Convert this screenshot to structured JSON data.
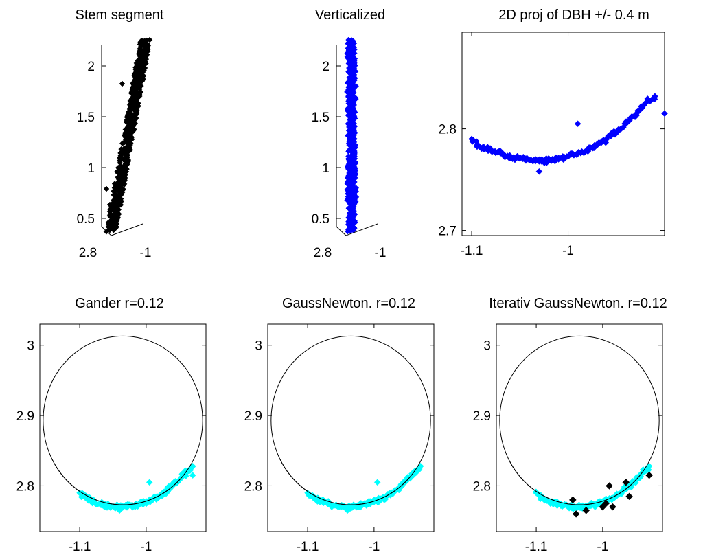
{
  "chart_data": [
    {
      "type": "scatter",
      "title": "Stem segment",
      "projection": "3d",
      "color": "#000000",
      "x_ticks": [
        "2.8",
        "-1"
      ],
      "y_ticks": [
        "2",
        "1.5",
        "1",
        "0.5"
      ],
      "zlim": [
        0.35,
        2.25
      ],
      "description_points": [
        {
          "x": -1.02,
          "y": 2.78,
          "z": 0.4
        },
        {
          "x": -1.0,
          "y": 2.79,
          "z": 1.0
        },
        {
          "x": -0.98,
          "y": 2.8,
          "z": 1.6
        },
        {
          "x": -0.96,
          "y": 2.81,
          "z": 2.2
        }
      ]
    },
    {
      "type": "scatter",
      "title": "Verticalized",
      "projection": "3d",
      "color": "#0000ff",
      "x_ticks": [
        "2.8",
        "-1"
      ],
      "y_ticks": [
        "2",
        "1.5",
        "1",
        "0.5"
      ],
      "zlim": [
        0.35,
        2.25
      ]
    },
    {
      "type": "scatter",
      "title": "2D proj of DBH +/- 0.4 m",
      "color": "#0000ff",
      "xlim": [
        -1.11,
        -0.9
      ],
      "ylim": [
        2.695,
        2.895
      ],
      "x_ticks": [
        "-1.1",
        "-1"
      ],
      "y_ticks": [
        "2.8",
        "2.7"
      ],
      "points": [
        [
          -1.1,
          2.79
        ],
        [
          -1.09,
          2.781
        ],
        [
          -1.08,
          2.779
        ],
        [
          -1.07,
          2.776
        ],
        [
          -1.06,
          2.772
        ],
        [
          -1.05,
          2.771
        ],
        [
          -1.04,
          2.769
        ],
        [
          -1.03,
          2.768
        ],
        [
          -1.02,
          2.769
        ],
        [
          -1.01,
          2.77
        ],
        [
          -1.0,
          2.773
        ],
        [
          -0.99,
          2.776
        ],
        [
          -0.98,
          2.779
        ],
        [
          -0.97,
          2.784
        ],
        [
          -0.96,
          2.79
        ],
        [
          -0.95,
          2.797
        ],
        [
          -0.94,
          2.805
        ],
        [
          -0.93,
          2.814
        ],
        [
          -0.92,
          2.825
        ],
        [
          -0.91,
          2.832
        ],
        [
          -0.99,
          2.805
        ],
        [
          -0.9,
          2.815
        ],
        [
          -1.03,
          2.758
        ]
      ]
    },
    {
      "type": "scatter",
      "title": "Gander r=0.12",
      "color": "#00ffff",
      "xlim": [
        -1.16,
        -0.91
      ],
      "ylim": [
        2.735,
        3.03
      ],
      "x_ticks": [
        "-1.1",
        "-1"
      ],
      "y_ticks": [
        "3",
        "2.9",
        "2.8"
      ],
      "circle": {
        "cx": -1.035,
        "cy": 2.893,
        "r": 0.12
      },
      "points": [
        [
          -1.1,
          2.79
        ],
        [
          -1.09,
          2.782
        ],
        [
          -1.08,
          2.778
        ],
        [
          -1.07,
          2.775
        ],
        [
          -1.06,
          2.772
        ],
        [
          -1.05,
          2.771
        ],
        [
          -1.04,
          2.77
        ],
        [
          -1.03,
          2.771
        ],
        [
          -1.02,
          2.772
        ],
        [
          -1.01,
          2.774
        ],
        [
          -1.0,
          2.777
        ],
        [
          -0.99,
          2.781
        ],
        [
          -0.98,
          2.786
        ],
        [
          -0.97,
          2.792
        ],
        [
          -0.96,
          2.8
        ],
        [
          -0.95,
          2.808
        ],
        [
          -0.94,
          2.818
        ],
        [
          -0.93,
          2.828
        ],
        [
          -0.995,
          2.805
        ],
        [
          -0.93,
          2.815
        ],
        [
          -1.04,
          2.765
        ]
      ]
    },
    {
      "type": "scatter",
      "title": "GaussNewton.  r=0.12",
      "color": "#00ffff",
      "xlim": [
        -1.16,
        -0.91
      ],
      "ylim": [
        2.735,
        3.03
      ],
      "x_ticks": [
        "-1.1",
        "-1"
      ],
      "y_ticks": [
        "3",
        "2.9",
        "2.8"
      ],
      "circle": {
        "cx": -1.035,
        "cy": 2.893,
        "r": 0.12
      },
      "points": [
        [
          -1.1,
          2.79
        ],
        [
          -1.09,
          2.782
        ],
        [
          -1.08,
          2.778
        ],
        [
          -1.07,
          2.775
        ],
        [
          -1.06,
          2.772
        ],
        [
          -1.05,
          2.771
        ],
        [
          -1.04,
          2.77
        ],
        [
          -1.03,
          2.771
        ],
        [
          -1.02,
          2.772
        ],
        [
          -1.01,
          2.774
        ],
        [
          -1.0,
          2.777
        ],
        [
          -0.99,
          2.781
        ],
        [
          -0.98,
          2.786
        ],
        [
          -0.97,
          2.792
        ],
        [
          -0.96,
          2.8
        ],
        [
          -0.95,
          2.808
        ],
        [
          -0.94,
          2.818
        ],
        [
          -0.93,
          2.828
        ],
        [
          -0.995,
          2.805
        ],
        [
          -1.04,
          2.765
        ]
      ]
    },
    {
      "type": "scatter",
      "title": "Iterativ GaussNewton.  r=0.12",
      "xlim": [
        -1.16,
        -0.91
      ],
      "ylim": [
        2.735,
        3.03
      ],
      "x_ticks": [
        "-1.1",
        "-1"
      ],
      "y_ticks": [
        "3",
        "2.9",
        "2.8"
      ],
      "circle": {
        "cx": -1.035,
        "cy": 2.893,
        "r": 0.12
      },
      "series": [
        {
          "color": "#00ffff",
          "points": [
            [
              -1.1,
              2.79
            ],
            [
              -1.09,
              2.782
            ],
            [
              -1.08,
              2.778
            ],
            [
              -1.07,
              2.775
            ],
            [
              -1.06,
              2.772
            ],
            [
              -1.05,
              2.771
            ],
            [
              -1.04,
              2.77
            ],
            [
              -1.03,
              2.771
            ],
            [
              -1.02,
              2.772
            ],
            [
              -1.01,
              2.774
            ],
            [
              -1.0,
              2.777
            ],
            [
              -0.99,
              2.781
            ],
            [
              -0.98,
              2.786
            ],
            [
              -0.97,
              2.792
            ],
            [
              -0.96,
              2.8
            ],
            [
              -0.95,
              2.808
            ],
            [
              -0.94,
              2.818
            ],
            [
              -0.93,
              2.828
            ]
          ]
        },
        {
          "color": "#000000",
          "points": [
            [
              -1.045,
              2.78
            ],
            [
              -1.04,
              2.76
            ],
            [
              -1.025,
              2.765
            ],
            [
              -1.0,
              2.77
            ],
            [
              -0.995,
              2.775
            ],
            [
              -0.99,
              2.8
            ],
            [
              -0.985,
              2.77
            ],
            [
              -0.965,
              2.805
            ],
            [
              -0.96,
              2.785
            ],
            [
              -0.93,
              2.815
            ]
          ]
        }
      ]
    }
  ]
}
